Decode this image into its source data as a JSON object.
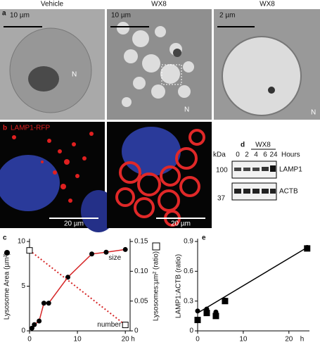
{
  "panels": {
    "a": {
      "label": "a",
      "headers": [
        "Vehicle",
        "WX8",
        "WX8"
      ],
      "scale_bars": [
        "10 µm",
        "10 µm",
        "2 µm"
      ],
      "nucleus": [
        "N",
        "N",
        "N"
      ]
    },
    "b": {
      "label": "b",
      "title": "LAMP1-RFP",
      "scale_bars": [
        "20 µm",
        "20 µm"
      ]
    },
    "d": {
      "label": "d",
      "treatment": "WX8",
      "kda": "kDa",
      "hours_label": "Hours",
      "hours": [
        "0",
        "2",
        "4",
        "6",
        "24"
      ],
      "markers": [
        "100",
        "37"
      ],
      "bands": [
        "LAMP1",
        "ACTB"
      ]
    }
  },
  "chart_data": [
    {
      "type": "line",
      "label": "c",
      "xlim": [
        0,
        21
      ],
      "xticks": [
        0,
        10,
        20
      ],
      "xlabel": "h",
      "ylim": [
        0,
        10
      ],
      "yticks": [
        0,
        5,
        10
      ],
      "ylabel": "Lysosome Area (µm²)",
      "y2lim": [
        0,
        0.15
      ],
      "y2ticks": [
        0,
        0.05,
        {
          "value": 0.1,
          "label": "0.10"
        },
        0.15
      ],
      "y2label": "Lysosomes:µm² (ratio)",
      "series": [
        {
          "name": "size",
          "color": "#d62728",
          "marker": "circle",
          "marker_color": "#000",
          "dash": false,
          "x": [
            0.5,
            1,
            2,
            3,
            4,
            8,
            13,
            16,
            20
          ],
          "values": [
            0.3,
            0.7,
            1.1,
            3.1,
            3.1,
            6.0,
            8.6,
            8.8,
            9.1
          ]
        },
        {
          "name": "number",
          "color": "#d62728",
          "marker": "square",
          "marker_color": "#000",
          "dash": true,
          "axis": "y2",
          "x": [
            0,
            20
          ],
          "values": [
            0.135,
            0.01
          ]
        }
      ]
    },
    {
      "type": "line",
      "label": "e",
      "xlim": [
        0,
        24.5
      ],
      "xticks": [
        0,
        10,
        20
      ],
      "xlabel": "h",
      "ylim": [
        0,
        0.9
      ],
      "yticks": [
        0,
        0.3,
        0.6,
        0.9
      ],
      "ylabel": "LAMP1:ACTB (ratio)",
      "series": [
        {
          "color": "#000",
          "marker": "none",
          "dash": false,
          "x": [
            0,
            24
          ],
          "values": [
            0.18,
            0.84
          ]
        },
        {
          "color": "none",
          "marker": "circle",
          "marker_color": "#000",
          "dash": false,
          "x": [
            0,
            2,
            4,
            6,
            24
          ],
          "values": [
            0.2,
            0.22,
            0.19,
            0.31,
            0.84
          ]
        },
        {
          "color": "none",
          "marker": "square",
          "marker_color": "#000",
          "dash": false,
          "x": [
            0,
            2,
            4,
            6,
            24
          ],
          "values": [
            0.11,
            0.18,
            0.15,
            0.3,
            0.83
          ]
        }
      ]
    }
  ]
}
